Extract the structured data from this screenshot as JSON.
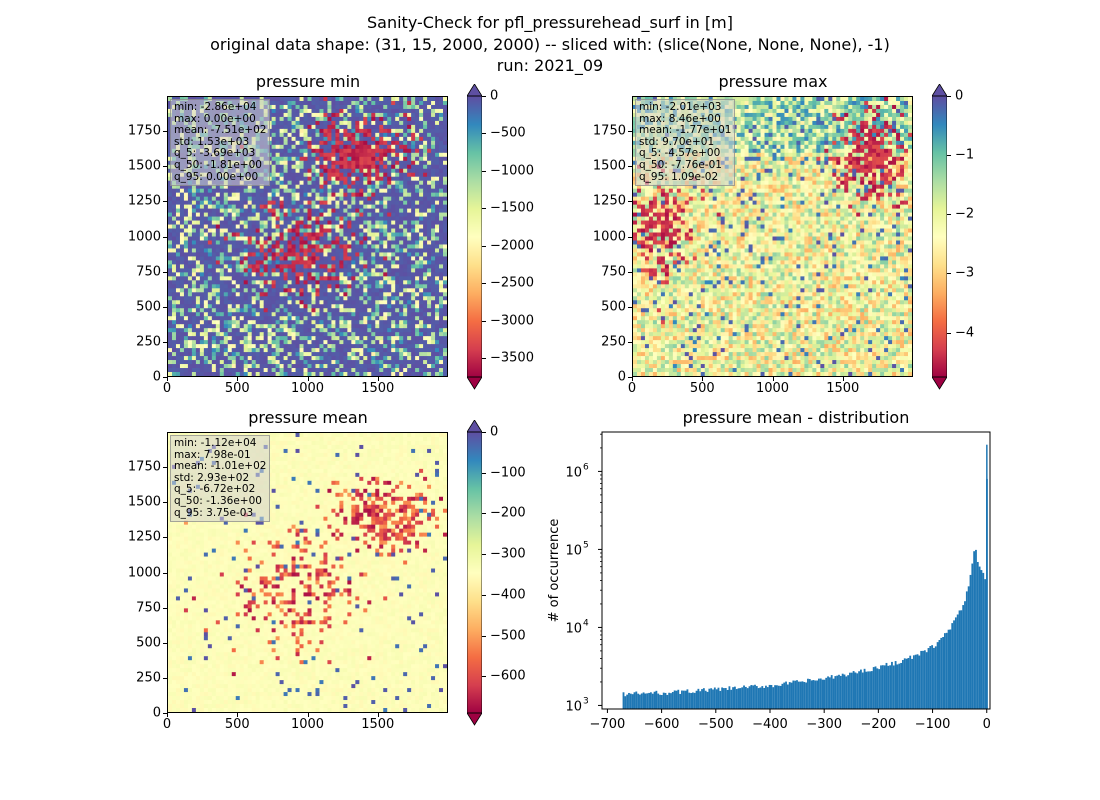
{
  "figure": {
    "suptitle_lines": [
      "Sanity-Check for pfl_pressurehead_surf in [m]",
      "original data shape: (31, 15, 2000, 2000) -- sliced with: (slice(None, None, None), -1)",
      "run: 2021_09"
    ]
  },
  "chart_data": [
    {
      "type": "heatmap",
      "title": "pressure min",
      "colormap": "Spectral",
      "xlim": [
        0,
        2000
      ],
      "ylim": [
        0,
        2000
      ],
      "x_ticks": [
        "0",
        "500",
        "1000",
        "1500"
      ],
      "y_ticks": [
        "0",
        "250",
        "500",
        "750",
        "1000",
        "1250",
        "1500",
        "1750"
      ],
      "colorbar": {
        "range": [
          -3750,
          0
        ],
        "ticks": [
          0,
          -500,
          -1000,
          -1500,
          -2000,
          -2500,
          -3000,
          -3500
        ],
        "tick_labels": [
          "0",
          "−500",
          "−1000",
          "−1500",
          "−2000",
          "−2500",
          "−3000",
          "−3500"
        ],
        "extend": "both"
      },
      "stats": [
        "min: -2.86e+04",
        "max: 0.00e+00",
        "mean: -7.51e+02",
        "std: 1.53e+03",
        "q_5: -3.69e+03",
        "q_50: -1.81e+00",
        "q_95: 0.00e+00"
      ]
    },
    {
      "type": "heatmap",
      "title": "pressure max",
      "colormap": "Spectral",
      "xlim": [
        0,
        2000
      ],
      "ylim": [
        0,
        2000
      ],
      "x_ticks": [
        "0",
        "500",
        "1000",
        "1500"
      ],
      "y_ticks": [
        "0",
        "250",
        "500",
        "750",
        "1000",
        "1250",
        "1500",
        "1750"
      ],
      "colorbar": {
        "range": [
          -4.75,
          0
        ],
        "ticks": [
          0,
          -1,
          -2,
          -3,
          -4
        ],
        "tick_labels": [
          "0",
          "−1",
          "−2",
          "−3",
          "−4"
        ],
        "extend": "both"
      },
      "stats": [
        "min: -2.01e+03",
        "max: 8.46e+00",
        "mean: -1.77e+01",
        "std: 9.70e+01",
        "q_5: -4.57e+00",
        "q_50: -7.76e-01",
        "q_95: 1.09e-02"
      ]
    },
    {
      "type": "heatmap",
      "title": "pressure mean",
      "colormap": "Spectral",
      "xlim": [
        0,
        2000
      ],
      "ylim": [
        0,
        2000
      ],
      "x_ticks": [
        "0",
        "500",
        "1000",
        "1500"
      ],
      "y_ticks": [
        "0",
        "250",
        "500",
        "750",
        "1000",
        "1250",
        "1500",
        "1750"
      ],
      "colorbar": {
        "range": [
          -690,
          0
        ],
        "ticks": [
          0,
          -100,
          -200,
          -300,
          -400,
          -500,
          -600
        ],
        "tick_labels": [
          "0",
          "−100",
          "−200",
          "−300",
          "−400",
          "−500",
          "−600"
        ],
        "extend": "both"
      },
      "stats": [
        "min: -1.12e+04",
        "max: 7.98e-01",
        "mean: -1.01e+02",
        "std: 2.93e+02",
        "q_5: -6.72e+02",
        "q_50: -1.36e+00",
        "q_95: 3.75e-03"
      ]
    },
    {
      "type": "bar",
      "title": "pressure mean - distribution",
      "ylabel": "# of occurrence",
      "xlabel": "",
      "yscale": "log",
      "xlim": [
        -710,
        6
      ],
      "ylim": [
        900,
        3200000
      ],
      "x_ticks": [
        -700,
        -600,
        -500,
        -400,
        -300,
        -200,
        -100,
        0
      ],
      "x_tick_labels": [
        "−700",
        "−600",
        "−500",
        "−400",
        "−300",
        "−200",
        "−100",
        "0"
      ],
      "y_ticks": [
        1000,
        10000,
        100000,
        1000000
      ],
      "bar_color": "#1f77b4",
      "bin_width": 3.37,
      "bins_x": [
        -672,
        -600,
        -500,
        -400,
        -300,
        -250,
        -200,
        -160,
        -130,
        -110,
        -95,
        -85,
        -75,
        -65,
        -55,
        -48,
        -42,
        -38,
        -35,
        -32,
        -29,
        -26,
        -23,
        -20,
        -17,
        -14,
        -11,
        -8,
        -5,
        -2.5,
        -1
      ],
      "bins_y": [
        1400,
        1450,
        1600,
        1800,
        2200,
        2600,
        3100,
        3700,
        4400,
        5200,
        6100,
        7200,
        8700,
        11000,
        14000,
        17500,
        22000,
        28000,
        36000,
        47000,
        62000,
        82000,
        105000,
        80000,
        70000,
        60000,
        55000,
        50000,
        42000,
        38000,
        2200000
      ]
    }
  ]
}
